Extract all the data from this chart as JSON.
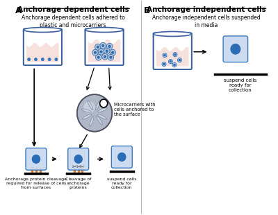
{
  "title_A": "Anchorage dependent cells",
  "title_B": "Anchorage independent cells",
  "label_A": "A",
  "label_B": "B",
  "desc_A": "Anchorage dependent cells adhered to\nplastic and microcarriers",
  "desc_B": "Anchorage independent cells suspended\nin media",
  "text_microcarrier": "Microcarriers with\ncells anchored to\nthe surface",
  "text_bottom1": "Anchorage protein cleavage\nrequired for release of cells\nfrom surfaces",
  "text_bottom2": "Cleavage of\nanchorage\nproteins",
  "text_bottom3": "suspend cells\nready for\ncollection",
  "text_suspend_B": "suspend cells\nready for\ncollection",
  "bg_color": "#ffffff",
  "flask_stroke": "#3a5fa0",
  "flask_fill_liquid": "#f5dcd8",
  "cell_color_dark": "#2a6db5",
  "cell_color_light": "#7aafe0",
  "orange_anchor": "#e08030",
  "cell_sq_fill": "#c8d8f0"
}
